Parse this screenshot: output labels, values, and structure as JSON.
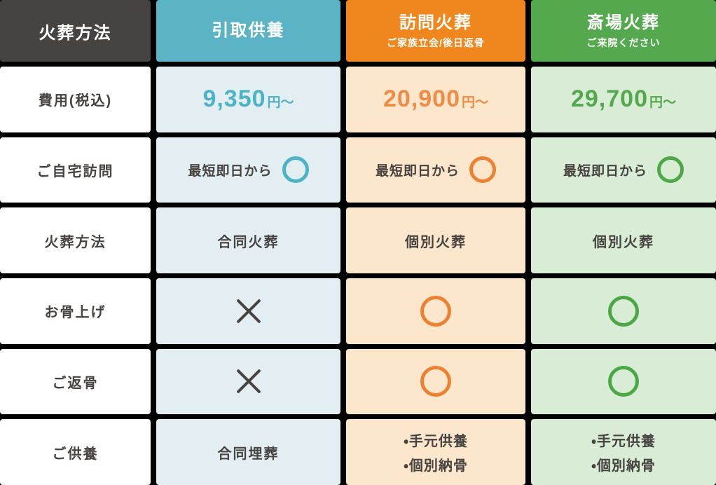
{
  "table": {
    "corner_header": "火葬方法",
    "columns": [
      {
        "title": "引取供養",
        "subtitle": "",
        "header_color": "#5bb4c6",
        "cell_color": "#e3eef3"
      },
      {
        "title": "訪問火葬",
        "subtitle": "ご家族立会/後日返骨",
        "header_color": "#f0871e",
        "cell_color": "#fce7cc"
      },
      {
        "title": "斎場火葬",
        "subtitle": "ご来院ください",
        "header_color": "#54a84d",
        "cell_color": "#d9ecd5"
      }
    ],
    "row_labels": [
      {
        "label": "費用(税込)"
      },
      {
        "label": "ご自宅訪問"
      },
      {
        "label": "火葬方法"
      },
      {
        "label": "お骨上げ"
      },
      {
        "label": "ご返骨"
      },
      {
        "label": "ご供養"
      }
    ],
    "cells": {
      "fee": {
        "hikitori": {
          "amount": "9,350",
          "unit": "円〜"
        },
        "houmon": {
          "amount": "20,900",
          "unit": "円〜"
        },
        "saijou": {
          "amount": "29,700",
          "unit": "円〜"
        }
      },
      "visit": {
        "hikitori": {
          "text": "最短即日から",
          "icon": "circle-icon"
        },
        "houmon": {
          "text": "最短即日から",
          "icon": "circle-icon"
        },
        "saijou": {
          "text": "最短即日から",
          "icon": "circle-icon"
        }
      },
      "method": {
        "hikitori": "合同火葬",
        "houmon": "個別火葬",
        "saijou": "個別火葬"
      },
      "kotsuage": {
        "hikitori": "cross-icon",
        "houmon": "circle-icon",
        "saijou": "circle-icon"
      },
      "henkotsu": {
        "hikitori": "cross-icon",
        "houmon": "circle-icon",
        "saijou": "circle-icon"
      },
      "kuyou": {
        "hikitori": {
          "line1": "合同埋葬",
          "line2": ""
        },
        "houmon": {
          "line1": "・手元供養",
          "line2": "・個別納骨"
        },
        "saijou": {
          "line1": "・手元供養",
          "line2": "・個別納骨"
        }
      }
    }
  },
  "colors": {
    "background": "#000000",
    "dark_header": "#474340",
    "teal_header": "#5bb4c6",
    "orange_header": "#f0871e",
    "green_header": "#54a84d",
    "teal_cell": "#e3eef3",
    "orange_cell": "#fce7cc",
    "green_cell": "#d9ecd5",
    "label_cell": "#ffffff",
    "price_teal": "#4cb2c6",
    "price_orange": "#ee8c45",
    "price_green": "#54a84d",
    "text_dark": "#474340"
  }
}
